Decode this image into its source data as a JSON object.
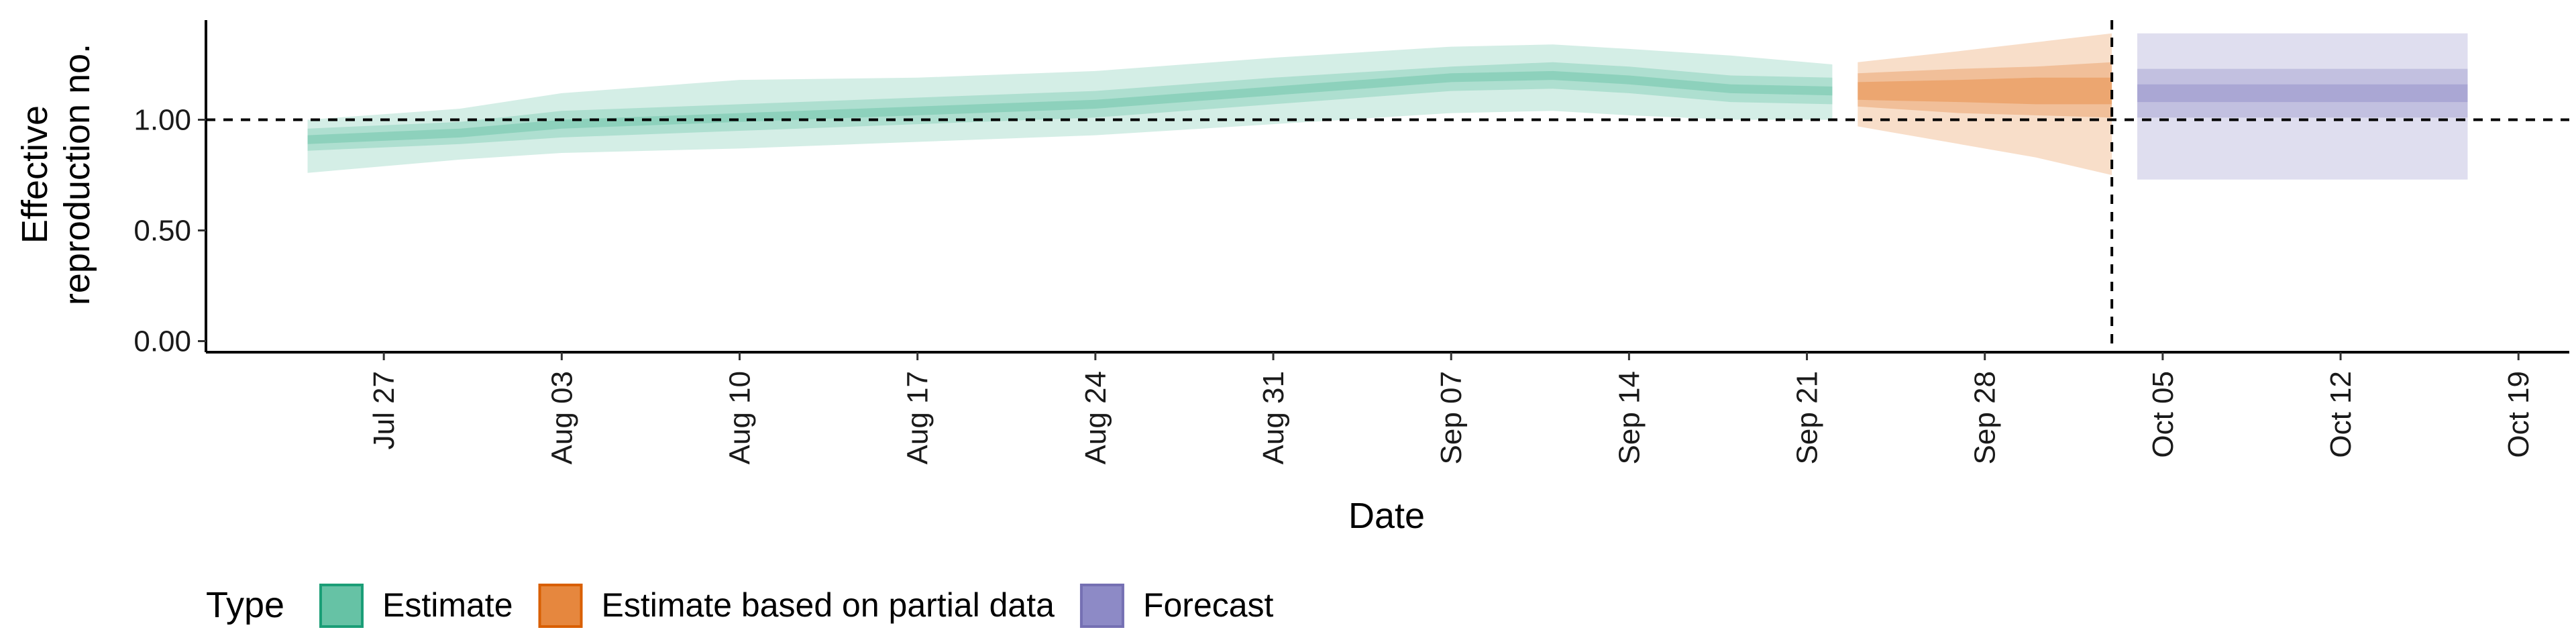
{
  "chart_data": {
    "type": "area",
    "xlabel": "Date",
    "ylabel_lines": [
      "Effective",
      "reproduction no."
    ],
    "y_ticks": [
      0.0,
      0.5,
      1.0
    ],
    "y_tick_labels": [
      "0.00",
      "0.50",
      "1.00"
    ],
    "ylim": [
      -0.05,
      1.45
    ],
    "x_ticks": [
      "2020-07-27",
      "2020-08-03",
      "2020-08-10",
      "2020-08-17",
      "2020-08-24",
      "2020-08-31",
      "2020-09-07",
      "2020-09-14",
      "2020-09-21",
      "2020-09-28",
      "2020-10-05",
      "2020-10-12",
      "2020-10-19"
    ],
    "x_tick_labels": [
      "Jul 27",
      "Aug 03",
      "Aug 10",
      "Aug 17",
      "Aug 24",
      "Aug 31",
      "Sep 07",
      "Sep 14",
      "Sep 21",
      "Sep 28",
      "Oct 05",
      "Oct 12",
      "Oct 19"
    ],
    "xlim": [
      "2020-07-20",
      "2020-10-21"
    ],
    "reference_line_y": 1.0,
    "reference_line_x": "2020-10-03",
    "grid": false,
    "legend_position": "bottom",
    "legend_title": "Type",
    "series": [
      {
        "name": "Estimate",
        "color": "#1b9e77",
        "fill": "#66c2a5",
        "points": [
          {
            "date": "2020-07-24",
            "median": 0.91,
            "inner": [
              0.89,
              0.93
            ],
            "mid": [
              0.86,
              0.96
            ],
            "outer": [
              0.76,
              1.0
            ]
          },
          {
            "date": "2020-07-30",
            "median": 0.94,
            "inner": [
              0.92,
              0.96
            ],
            "mid": [
              0.89,
              0.99
            ],
            "outer": [
              0.82,
              1.05
            ]
          },
          {
            "date": "2020-08-03",
            "median": 0.98,
            "inner": [
              0.96,
              1.0
            ],
            "mid": [
              0.92,
              1.04
            ],
            "outer": [
              0.85,
              1.12
            ]
          },
          {
            "date": "2020-08-10",
            "median": 1.01,
            "inner": [
              0.99,
              1.03
            ],
            "mid": [
              0.95,
              1.07
            ],
            "outer": [
              0.87,
              1.18
            ]
          },
          {
            "date": "2020-08-17",
            "median": 1.04,
            "inner": [
              1.02,
              1.06
            ],
            "mid": [
              0.98,
              1.1
            ],
            "outer": [
              0.9,
              1.19
            ]
          },
          {
            "date": "2020-08-24",
            "median": 1.07,
            "inner": [
              1.05,
              1.09
            ],
            "mid": [
              1.01,
              1.13
            ],
            "outer": [
              0.93,
              1.22
            ]
          },
          {
            "date": "2020-08-31",
            "median": 1.13,
            "inner": [
              1.11,
              1.15
            ],
            "mid": [
              1.07,
              1.19
            ],
            "outer": [
              0.98,
              1.28
            ]
          },
          {
            "date": "2020-09-07",
            "median": 1.19,
            "inner": [
              1.17,
              1.21
            ],
            "mid": [
              1.13,
              1.24
            ],
            "outer": [
              1.03,
              1.33
            ]
          },
          {
            "date": "2020-09-11",
            "median": 1.2,
            "inner": [
              1.18,
              1.22
            ],
            "mid": [
              1.14,
              1.26
            ],
            "outer": [
              1.04,
              1.34
            ]
          },
          {
            "date": "2020-09-14",
            "median": 1.18,
            "inner": [
              1.16,
              1.2
            ],
            "mid": [
              1.12,
              1.24
            ],
            "outer": [
              1.02,
              1.32
            ]
          },
          {
            "date": "2020-09-18",
            "median": 1.14,
            "inner": [
              1.12,
              1.16
            ],
            "mid": [
              1.08,
              1.2
            ],
            "outer": [
              1.0,
              1.29
            ]
          },
          {
            "date": "2020-09-22",
            "median": 1.13,
            "inner": [
              1.11,
              1.15
            ],
            "mid": [
              1.07,
              1.19
            ],
            "outer": [
              1.0,
              1.25
            ]
          }
        ]
      },
      {
        "name": "Estimate based on partial data",
        "color": "#d95f02",
        "fill": "#e6873e",
        "points": [
          {
            "date": "2020-09-23",
            "median": 1.13,
            "inner": [
              1.09,
              1.17
            ],
            "mid": [
              1.06,
              1.21
            ],
            "outer": [
              0.97,
              1.26
            ]
          },
          {
            "date": "2020-09-27",
            "median": 1.13,
            "inner": [
              1.08,
              1.18
            ],
            "mid": [
              1.03,
              1.23
            ],
            "outer": [
              0.89,
              1.31
            ]
          },
          {
            "date": "2020-09-30",
            "median": 1.13,
            "inner": [
              1.07,
              1.19
            ],
            "mid": [
              1.02,
              1.24
            ],
            "outer": [
              0.83,
              1.35
            ]
          },
          {
            "date": "2020-10-03",
            "median": 1.13,
            "inner": [
              1.07,
              1.19
            ],
            "mid": [
              1.01,
              1.26
            ],
            "outer": [
              0.75,
              1.39
            ]
          }
        ]
      },
      {
        "name": "Forecast",
        "color": "#7570b3",
        "fill": "#8d8ac6",
        "points": [
          {
            "date": "2020-10-04",
            "median": 1.12,
            "inner": [
              1.08,
              1.16
            ],
            "mid": [
              1.01,
              1.23
            ],
            "outer": [
              0.73,
              1.39
            ]
          },
          {
            "date": "2020-10-17",
            "median": 1.12,
            "inner": [
              1.08,
              1.16
            ],
            "mid": [
              1.01,
              1.23
            ],
            "outer": [
              0.73,
              1.39
            ]
          }
        ]
      }
    ]
  }
}
